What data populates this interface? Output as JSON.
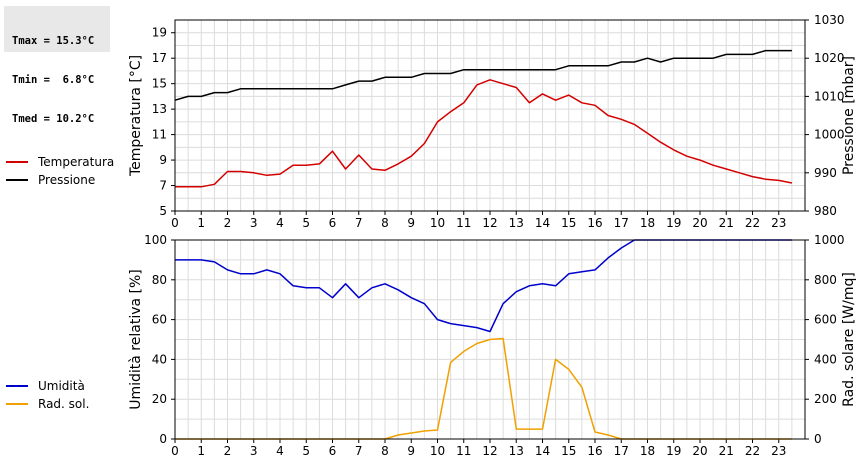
{
  "stats": {
    "tmax": "Tmax = 15.3°C",
    "tmin": "Tmin =  6.8°C",
    "tmed": "Tmed = 10.2°C"
  },
  "chart_data": [
    {
      "type": "line",
      "x_range": [
        0,
        24
      ],
      "x_ticks": [
        0,
        1,
        2,
        3,
        4,
        5,
        6,
        7,
        8,
        9,
        10,
        11,
        12,
        13,
        14,
        15,
        16,
        17,
        18,
        19,
        20,
        21,
        22,
        23
      ],
      "grid": true,
      "legend_position": "left",
      "left_axis": {
        "label": "Temperatura [°C]",
        "range": [
          5,
          20
        ],
        "ticks": [
          5,
          7,
          9,
          11,
          13,
          15,
          17,
          19
        ]
      },
      "right_axis": {
        "label": "Pressione [mbar]",
        "range": [
          980,
          1030
        ],
        "ticks": [
          980,
          990,
          1000,
          1010,
          1020,
          1030
        ]
      },
      "series": [
        {
          "name": "Temperatura",
          "axis": "left",
          "color": "#d40000",
          "points": [
            [
              0,
              6.9
            ],
            [
              0.5,
              6.9
            ],
            [
              1,
              6.9
            ],
            [
              1.5,
              7.1
            ],
            [
              2,
              8.1
            ],
            [
              2.5,
              8.1
            ],
            [
              3,
              8.0
            ],
            [
              3.5,
              7.8
            ],
            [
              4,
              7.9
            ],
            [
              4.5,
              8.6
            ],
            [
              5,
              8.6
            ],
            [
              5.5,
              8.7
            ],
            [
              6,
              9.7
            ],
            [
              6.5,
              8.3
            ],
            [
              7,
              9.4
            ],
            [
              7.5,
              8.3
            ],
            [
              8,
              8.2
            ],
            [
              8.5,
              8.7
            ],
            [
              9,
              9.3
            ],
            [
              9.5,
              10.3
            ],
            [
              10,
              12.0
            ],
            [
              10.5,
              12.8
            ],
            [
              11,
              13.5
            ],
            [
              11.5,
              14.9
            ],
            [
              12,
              15.3
            ],
            [
              12.5,
              15.0
            ],
            [
              13,
              14.7
            ],
            [
              13.5,
              13.5
            ],
            [
              14,
              14.2
            ],
            [
              14.5,
              13.7
            ],
            [
              15,
              14.1
            ],
            [
              15.5,
              13.5
            ],
            [
              16,
              13.3
            ],
            [
              16.5,
              12.5
            ],
            [
              17,
              12.2
            ],
            [
              17.5,
              11.8
            ],
            [
              18,
              11.1
            ],
            [
              18.5,
              10.4
            ],
            [
              19,
              9.8
            ],
            [
              19.5,
              9.3
            ],
            [
              20,
              9.0
            ],
            [
              20.5,
              8.6
            ],
            [
              21,
              8.3
            ],
            [
              21.5,
              8.0
            ],
            [
              22,
              7.7
            ],
            [
              22.5,
              7.5
            ],
            [
              23,
              7.4
            ],
            [
              23.5,
              7.2
            ]
          ]
        },
        {
          "name": "Pressione",
          "axis": "right",
          "color": "#000000",
          "points": [
            [
              0,
              1009
            ],
            [
              0.5,
              1010
            ],
            [
              1,
              1010
            ],
            [
              1.5,
              1011
            ],
            [
              2,
              1011
            ],
            [
              2.5,
              1012
            ],
            [
              3,
              1012
            ],
            [
              4,
              1012
            ],
            [
              5,
              1012
            ],
            [
              6,
              1012
            ],
            [
              6.5,
              1013
            ],
            [
              7,
              1014
            ],
            [
              7.5,
              1014
            ],
            [
              8,
              1015
            ],
            [
              9,
              1015
            ],
            [
              9.5,
              1016
            ],
            [
              10,
              1016
            ],
            [
              10.5,
              1016
            ],
            [
              11,
              1017
            ],
            [
              12,
              1017
            ],
            [
              13,
              1017
            ],
            [
              14,
              1017
            ],
            [
              14.5,
              1017
            ],
            [
              15,
              1018
            ],
            [
              16,
              1018
            ],
            [
              16.5,
              1018
            ],
            [
              17,
              1019
            ],
            [
              17.5,
              1019
            ],
            [
              18,
              1020
            ],
            [
              18.5,
              1019
            ],
            [
              19,
              1020
            ],
            [
              20,
              1020
            ],
            [
              20.5,
              1020
            ],
            [
              21,
              1021
            ],
            [
              22,
              1021
            ],
            [
              22.5,
              1022
            ],
            [
              23,
              1022
            ],
            [
              23.5,
              1022
            ]
          ]
        }
      ]
    },
    {
      "type": "line",
      "x_range": [
        0,
        24
      ],
      "x_ticks": [
        0,
        1,
        2,
        3,
        4,
        5,
        6,
        7,
        8,
        9,
        10,
        11,
        12,
        13,
        14,
        15,
        16,
        17,
        18,
        19,
        20,
        21,
        22,
        23
      ],
      "grid": true,
      "legend_position": "left",
      "left_axis": {
        "label": "Umidità relativa [%]",
        "range": [
          0,
          100
        ],
        "ticks": [
          0,
          20,
          40,
          60,
          80,
          100
        ]
      },
      "right_axis": {
        "label": "Rad. solare [W/mq]",
        "range": [
          0,
          1000
        ],
        "ticks": [
          0,
          200,
          400,
          600,
          800,
          1000
        ]
      },
      "series": [
        {
          "name": "Umidità",
          "axis": "left",
          "color": "#0000cc",
          "points": [
            [
              0,
              90
            ],
            [
              0.5,
              90
            ],
            [
              1,
              90
            ],
            [
              1.5,
              89
            ],
            [
              2,
              85
            ],
            [
              2.5,
              83
            ],
            [
              3,
              83
            ],
            [
              3.5,
              85
            ],
            [
              4,
              83
            ],
            [
              4.5,
              77
            ],
            [
              5,
              76
            ],
            [
              5.5,
              76
            ],
            [
              6,
              71
            ],
            [
              6.5,
              78
            ],
            [
              7,
              71
            ],
            [
              7.5,
              76
            ],
            [
              8,
              78
            ],
            [
              8.5,
              75
            ],
            [
              9,
              71
            ],
            [
              9.5,
              68
            ],
            [
              10,
              60
            ],
            [
              10.5,
              58
            ],
            [
              11,
              57
            ],
            [
              11.5,
              56
            ],
            [
              12,
              54
            ],
            [
              12.5,
              68
            ],
            [
              13,
              74
            ],
            [
              13.5,
              77
            ],
            [
              14,
              78
            ],
            [
              14.5,
              77
            ],
            [
              15,
              83
            ],
            [
              15.5,
              84
            ],
            [
              16,
              85
            ],
            [
              16.5,
              91
            ],
            [
              17,
              96
            ],
            [
              17.5,
              100
            ],
            [
              18,
              100
            ],
            [
              19,
              100
            ],
            [
              20,
              100
            ],
            [
              21,
              100
            ],
            [
              22,
              100
            ],
            [
              23,
              100
            ],
            [
              23.5,
              100
            ]
          ]
        },
        {
          "name": "Rad. sol.",
          "axis": "right",
          "color": "#f0a000",
          "points": [
            [
              0,
              0
            ],
            [
              1,
              0
            ],
            [
              2,
              0
            ],
            [
              3,
              0
            ],
            [
              4,
              0
            ],
            [
              5,
              0
            ],
            [
              6,
              0
            ],
            [
              7,
              0
            ],
            [
              8,
              0
            ],
            [
              8.5,
              20
            ],
            [
              9,
              30
            ],
            [
              9.5,
              40
            ],
            [
              10,
              45
            ],
            [
              10.5,
              385
            ],
            [
              11,
              440
            ],
            [
              11.5,
              480
            ],
            [
              12,
              500
            ],
            [
              12.5,
              505
            ],
            [
              13,
              50
            ],
            [
              13.5,
              50
            ],
            [
              14,
              50
            ],
            [
              14.5,
              400
            ],
            [
              15,
              350
            ],
            [
              15.5,
              260
            ],
            [
              16,
              35
            ],
            [
              16.5,
              20
            ],
            [
              17,
              0
            ],
            [
              18,
              0
            ],
            [
              19,
              0
            ],
            [
              20,
              0
            ],
            [
              21,
              0
            ],
            [
              22,
              0
            ],
            [
              23,
              0
            ],
            [
              23.5,
              0
            ]
          ]
        }
      ]
    }
  ]
}
